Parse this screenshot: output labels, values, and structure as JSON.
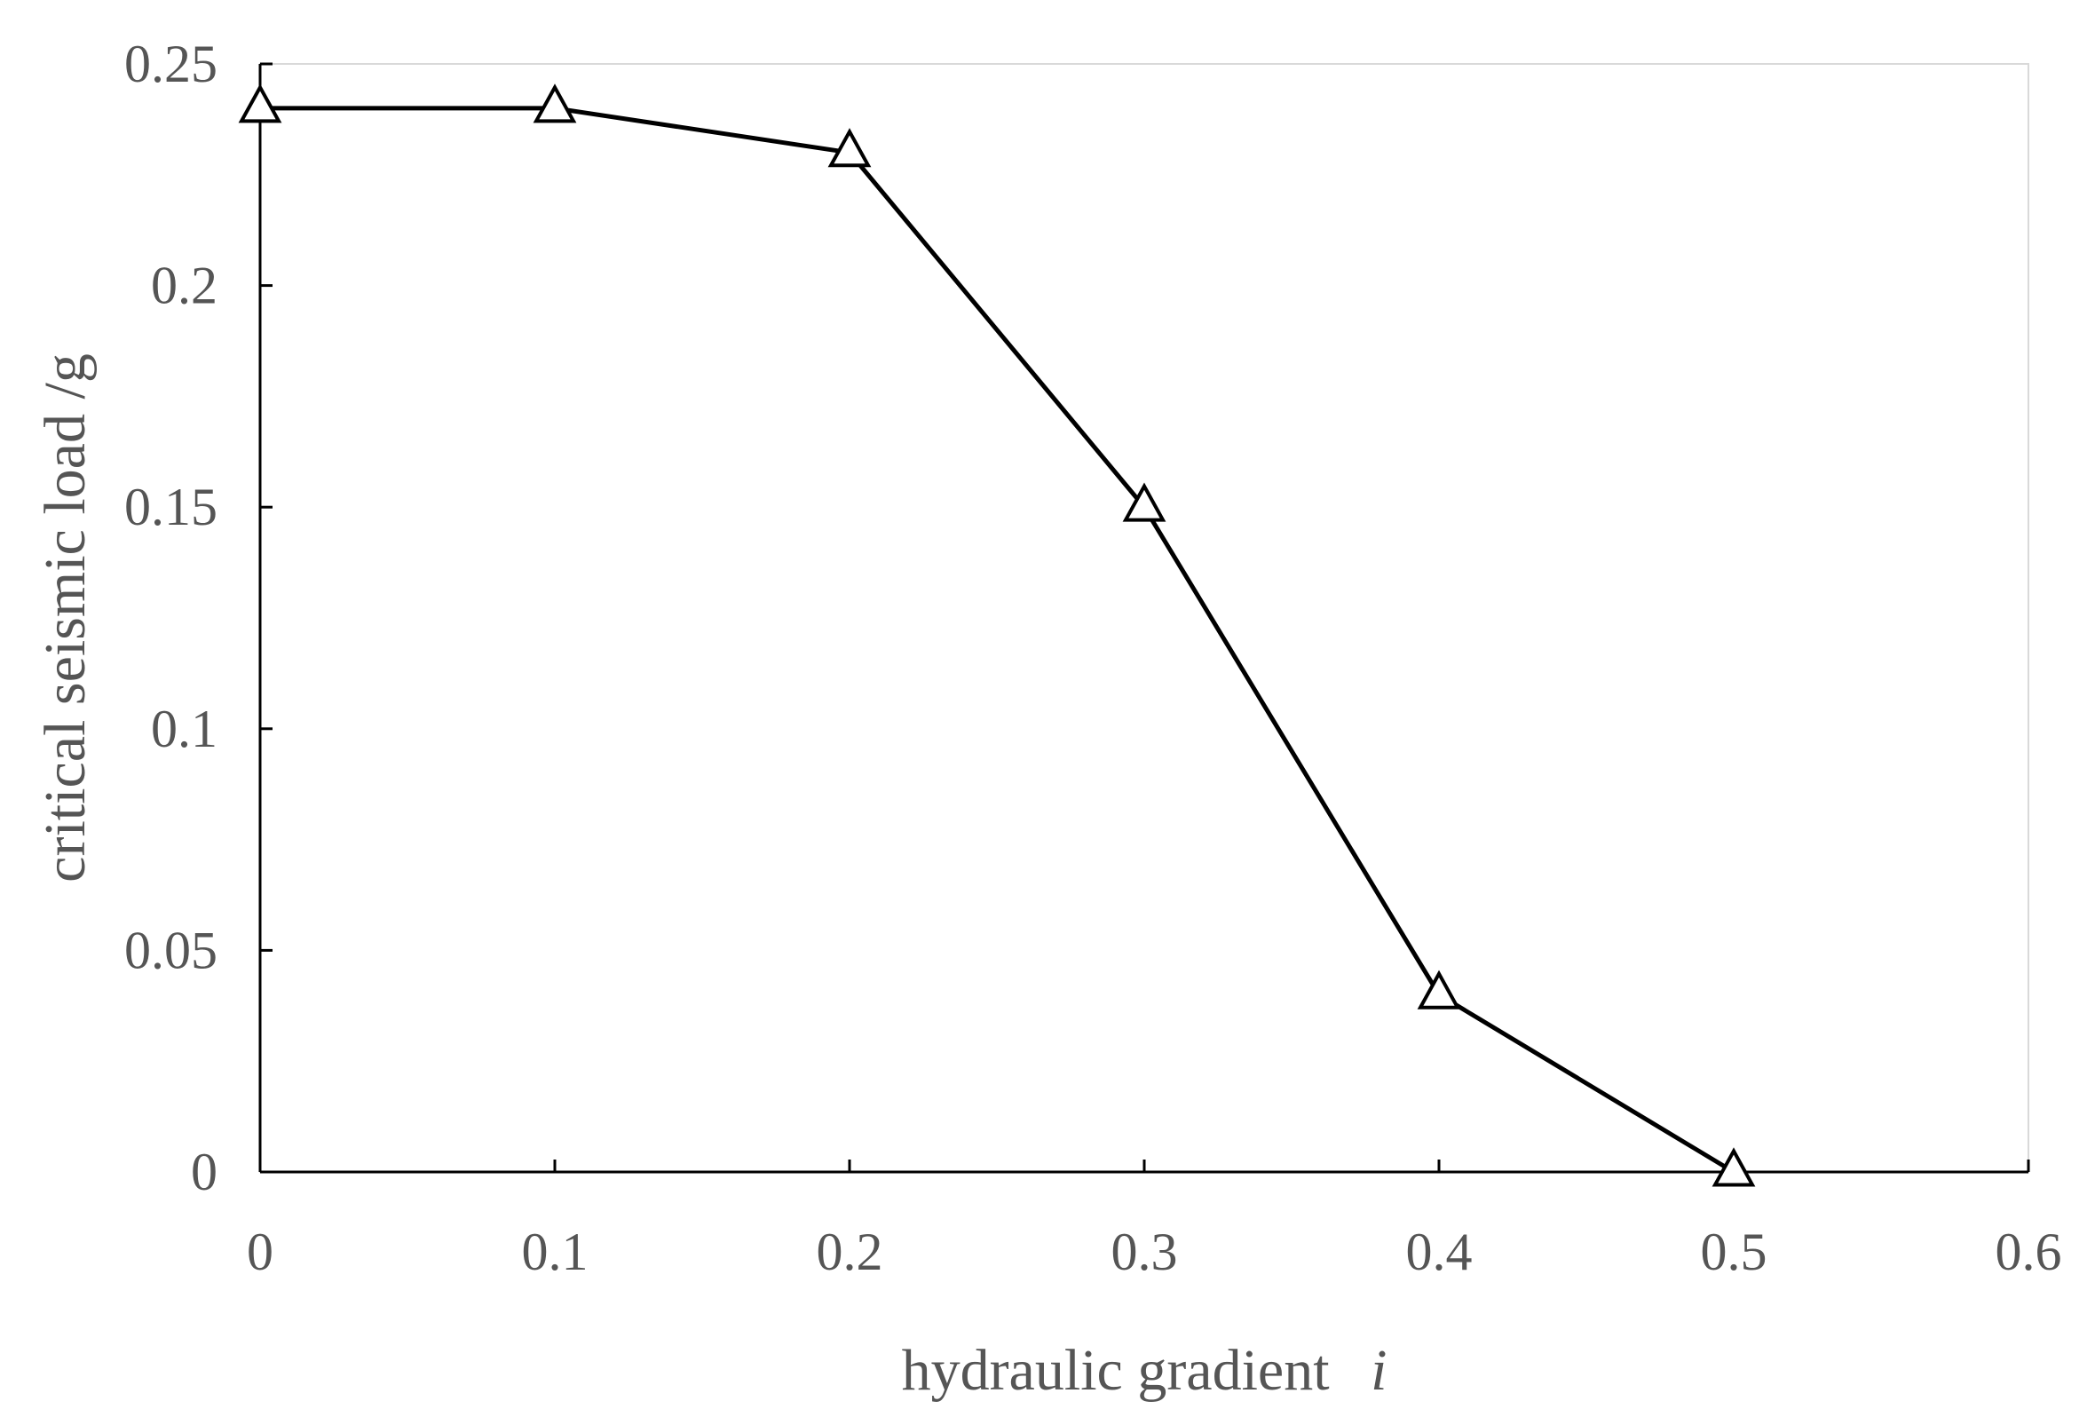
{
  "chart_data": {
    "type": "line",
    "title": "",
    "xlabel": "hydraulic gradient",
    "xlabel_var": "i",
    "ylabel": "critical seismic load /g",
    "xlim": [
      0,
      0.6
    ],
    "ylim": [
      0,
      0.25
    ],
    "x_ticks": [
      0,
      0.1,
      0.2,
      0.3,
      0.4,
      0.5,
      0.6
    ],
    "x_tick_labels": [
      "0",
      "0.1",
      "0.2",
      "0.3",
      "0.4",
      "0.5",
      "0.6"
    ],
    "y_ticks": [
      0,
      0.05,
      0.1,
      0.15,
      0.2,
      0.25
    ],
    "y_tick_labels": [
      "0",
      "0.05",
      "0.1",
      "0.15",
      "0.2",
      "0.25"
    ],
    "grid": false,
    "legend": "none",
    "series": [
      {
        "marker": "open-triangle",
        "color": "#000000",
        "x": [
          0,
          0.1,
          0.2,
          0.3,
          0.4,
          0.5
        ],
        "y": [
          0.24,
          0.24,
          0.23,
          0.15,
          0.04,
          0
        ]
      }
    ]
  }
}
